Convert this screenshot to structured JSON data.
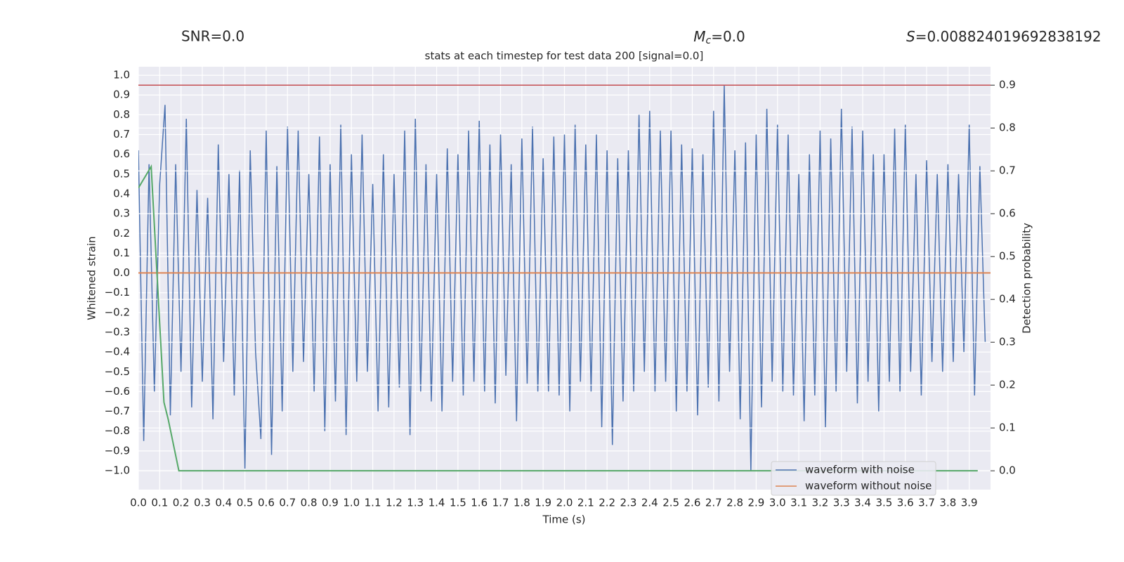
{
  "chart_data": {
    "type": "line",
    "title": "stats at each timestep for test data 200 [signal=0.0]",
    "annotations": {
      "snr": "SNR=0.0",
      "mc": {
        "symbol": "M",
        "subscript": "c",
        "text": "=0.0"
      },
      "s": {
        "symbol": "S",
        "text": "=0.008824019692838192"
      }
    },
    "xlabel": "Time (s)",
    "ylabel": "Whitened strain",
    "y2label": "Detection probability",
    "xlim": [
      0,
      4.0
    ],
    "ylim": [
      -1.096,
      1.043
    ],
    "y2lim": [
      -0.044,
      0.943
    ],
    "grid": true,
    "legend": "lower right",
    "xticks": [
      {
        "value": 0,
        "label": "0.0"
      },
      {
        "value": 0.1,
        "label": "0.1"
      },
      {
        "value": 0.2,
        "label": "0.2"
      },
      {
        "value": 0.3,
        "label": "0.3"
      },
      {
        "value": 0.4,
        "label": "0.4"
      },
      {
        "value": 0.5,
        "label": "0.5"
      },
      {
        "value": 0.6,
        "label": "0.6"
      },
      {
        "value": 0.7,
        "label": "0.7"
      },
      {
        "value": 0.8,
        "label": "0.8"
      },
      {
        "value": 0.9,
        "label": "0.9"
      },
      {
        "value": 1,
        "label": "1.0"
      },
      {
        "value": 1.1,
        "label": "1.1"
      },
      {
        "value": 1.2,
        "label": "1.2"
      },
      {
        "value": 1.3,
        "label": "1.3"
      },
      {
        "value": 1.4,
        "label": "1.4"
      },
      {
        "value": 1.5,
        "label": "1.5"
      },
      {
        "value": 1.6,
        "label": "1.6"
      },
      {
        "value": 1.7,
        "label": "1.7"
      },
      {
        "value": 1.8,
        "label": "1.8"
      },
      {
        "value": 1.9,
        "label": "1.9"
      },
      {
        "value": 2,
        "label": "2.0"
      },
      {
        "value": 2.1,
        "label": "2.1"
      },
      {
        "value": 2.2,
        "label": "2.2"
      },
      {
        "value": 2.3,
        "label": "2.3"
      },
      {
        "value": 2.4,
        "label": "2.4"
      },
      {
        "value": 2.5,
        "label": "2.5"
      },
      {
        "value": 2.6,
        "label": "2.6"
      },
      {
        "value": 2.7,
        "label": "2.7"
      },
      {
        "value": 2.8,
        "label": "2.8"
      },
      {
        "value": 2.9,
        "label": "2.9"
      },
      {
        "value": 3,
        "label": "3.0"
      },
      {
        "value": 3.1,
        "label": "3.1"
      },
      {
        "value": 3.2,
        "label": "3.2"
      },
      {
        "value": 3.3,
        "label": "3.3"
      },
      {
        "value": 3.4,
        "label": "3.4"
      },
      {
        "value": 3.5,
        "label": "3.5"
      },
      {
        "value": 3.6,
        "label": "3.6"
      },
      {
        "value": 3.7,
        "label": "3.7"
      },
      {
        "value": 3.8,
        "label": "3.8"
      },
      {
        "value": 3.9,
        "label": "3.9"
      }
    ],
    "yticks": [
      {
        "value": 1,
        "label": "1.0"
      },
      {
        "value": 0.9,
        "label": "0.9"
      },
      {
        "value": 0.8,
        "label": "0.8"
      },
      {
        "value": 0.7,
        "label": "0.7"
      },
      {
        "value": 0.6,
        "label": "0.6"
      },
      {
        "value": 0.5,
        "label": "0.5"
      },
      {
        "value": 0.4,
        "label": "0.4"
      },
      {
        "value": 0.3,
        "label": "0.3"
      },
      {
        "value": 0.2,
        "label": "0.2"
      },
      {
        "value": 0.1,
        "label": "0.1"
      },
      {
        "value": 0,
        "label": "0.0"
      },
      {
        "value": -0.1,
        "label": "−0.1"
      },
      {
        "value": -0.2,
        "label": "−0.2"
      },
      {
        "value": -0.3,
        "label": "−0.3"
      },
      {
        "value": -0.4,
        "label": "−0.4"
      },
      {
        "value": -0.5,
        "label": "−0.5"
      },
      {
        "value": -0.6,
        "label": "−0.6"
      },
      {
        "value": -0.7,
        "label": "−0.7"
      },
      {
        "value": -0.8,
        "label": "−0.8"
      },
      {
        "value": -0.9,
        "label": "−0.9"
      },
      {
        "value": -1,
        "label": "−1.0"
      }
    ],
    "y2ticks": [
      {
        "value": 0.9,
        "label": "0.9"
      },
      {
        "value": 0.8,
        "label": "0.8"
      },
      {
        "value": 0.7,
        "label": "0.7"
      },
      {
        "value": 0.6,
        "label": "0.6"
      },
      {
        "value": 0.5,
        "label": "0.5"
      },
      {
        "value": 0.4,
        "label": "0.4"
      },
      {
        "value": 0.3,
        "label": "0.3"
      },
      {
        "value": 0.2,
        "label": "0.2"
      },
      {
        "value": 0.1,
        "label": "0.1"
      },
      {
        "value": 0,
        "label": "0.0"
      }
    ],
    "series": [
      {
        "name": "waveform with noise",
        "color": "#4c72b0",
        "x": [
          0,
          0.025,
          0.05,
          0.075,
          0.1,
          0.125,
          0.15,
          0.175,
          0.2,
          0.225,
          0.25,
          0.275,
          0.3,
          0.325,
          0.35,
          0.375,
          0.4,
          0.425,
          0.45,
          0.475,
          0.5,
          0.525,
          0.55,
          0.575,
          0.6,
          0.625,
          0.65,
          0.675,
          0.7,
          0.725,
          0.75,
          0.775,
          0.8,
          0.825,
          0.85,
          0.875,
          0.9,
          0.925,
          0.95,
          0.975,
          1,
          1.025,
          1.05,
          1.075,
          1.1,
          1.125,
          1.15,
          1.175,
          1.2,
          1.225,
          1.25,
          1.275,
          1.3,
          1.325,
          1.35,
          1.375,
          1.4,
          1.425,
          1.45,
          1.475,
          1.5,
          1.525,
          1.55,
          1.575,
          1.6,
          1.625,
          1.65,
          1.675,
          1.7,
          1.725,
          1.75,
          1.775,
          1.8,
          1.825,
          1.85,
          1.875,
          1.9,
          1.925,
          1.95,
          1.975,
          2,
          2.025,
          2.05,
          2.075,
          2.1,
          2.125,
          2.15,
          2.175,
          2.2,
          2.225,
          2.25,
          2.275,
          2.3,
          2.325,
          2.35,
          2.375,
          2.4,
          2.425,
          2.45,
          2.475,
          2.5,
          2.525,
          2.55,
          2.575,
          2.6,
          2.625,
          2.65,
          2.675,
          2.7,
          2.725,
          2.75,
          2.775,
          2.8,
          2.825,
          2.85,
          2.875,
          2.9,
          2.925,
          2.95,
          2.975,
          3,
          3.025,
          3.05,
          3.075,
          3.1,
          3.125,
          3.15,
          3.175,
          3.2,
          3.225,
          3.25,
          3.275,
          3.3,
          3.325,
          3.35,
          3.375,
          3.4,
          3.425,
          3.45,
          3.475,
          3.5,
          3.525,
          3.55,
          3.575,
          3.6,
          3.625,
          3.65,
          3.675,
          3.7,
          3.725,
          3.75,
          3.775,
          3.8,
          3.825,
          3.85,
          3.875,
          3.9,
          3.925,
          3.95,
          3.975
        ],
        "values": [
          0.62,
          -0.85,
          0.55,
          -0.6,
          0.45,
          0.85,
          -0.72,
          0.55,
          -0.5,
          0.78,
          -0.68,
          0.42,
          -0.55,
          0.38,
          -0.74,
          0.65,
          -0.45,
          0.5,
          -0.62,
          0.52,
          -0.99,
          0.62,
          -0.4,
          -0.84,
          0.72,
          -0.92,
          0.54,
          -0.7,
          0.74,
          -0.5,
          0.72,
          -0.45,
          0.5,
          -0.6,
          0.69,
          -0.8,
          0.55,
          -0.65,
          0.75,
          -0.82,
          0.6,
          -0.55,
          0.7,
          -0.5,
          0.45,
          -0.7,
          0.6,
          -0.68,
          0.5,
          -0.58,
          0.72,
          -0.82,
          0.78,
          -0.6,
          0.55,
          -0.65,
          0.5,
          -0.7,
          0.63,
          -0.55,
          0.6,
          -0.62,
          0.72,
          -0.55,
          0.77,
          -0.6,
          0.65,
          -0.66,
          0.7,
          -0.52,
          0.55,
          -0.75,
          0.68,
          -0.56,
          0.74,
          -0.6,
          0.58,
          -0.6,
          0.69,
          -0.62,
          0.7,
          -0.7,
          0.75,
          -0.55,
          0.65,
          -0.6,
          0.7,
          -0.78,
          0.62,
          -0.87,
          0.58,
          -0.65,
          0.62,
          -0.6,
          0.8,
          -0.5,
          0.82,
          -0.6,
          0.72,
          -0.55,
          0.72,
          -0.7,
          0.65,
          -0.6,
          0.63,
          -0.72,
          0.6,
          -0.58,
          0.82,
          -0.65,
          0.95,
          -0.5,
          0.62,
          -0.74,
          0.66,
          -1.0,
          0.7,
          -0.68,
          0.83,
          -0.55,
          0.75,
          -0.6,
          0.7,
          -0.62,
          0.5,
          -0.75,
          0.6,
          -0.62,
          0.72,
          -0.78,
          0.68,
          -0.6,
          0.83,
          -0.5,
          0.74,
          -0.66,
          0.72,
          -0.55,
          0.6,
          -0.7,
          0.6,
          -0.55,
          0.73,
          -0.6,
          0.75,
          -0.5,
          0.5,
          -0.62,
          0.57,
          -0.45,
          0.5,
          -0.5,
          0.55,
          -0.45,
          0.5,
          -0.4,
          0.75,
          -0.62,
          0.54,
          -0.35
        ]
      },
      {
        "name": "waveform without noise",
        "color": "#dd8452",
        "x": [
          0,
          4.0
        ],
        "values": [
          0,
          0
        ]
      }
    ],
    "detection_probability": {
      "color": "#55a868",
      "axis": "y2",
      "x": [
        0,
        0.06,
        0.12,
        0.14,
        0.19,
        3.94
      ],
      "values": [
        0.66,
        0.71,
        0.16,
        0.12,
        0.0,
        0.0
      ]
    },
    "threshold": {
      "color": "#c44e52",
      "axis": "y2",
      "value": 0.9
    }
  }
}
